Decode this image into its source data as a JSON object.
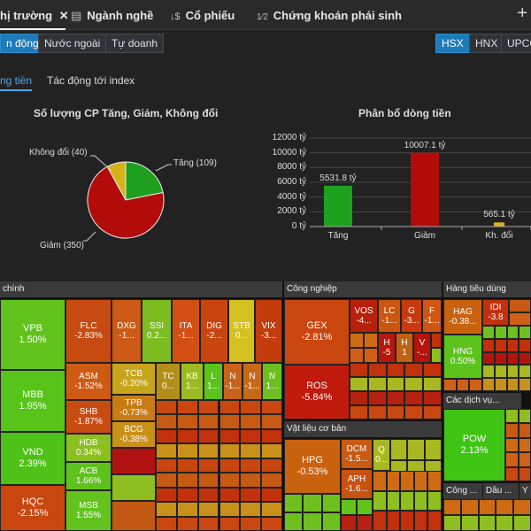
{
  "tabs": [
    {
      "label": "hị trường",
      "icon": "",
      "close": "✕"
    },
    {
      "label": "Ngành nghề",
      "icon": "▤"
    },
    {
      "label": "Cổ phiếu",
      "icon": "↓$"
    },
    {
      "label": "Chứng khoán phái sinh",
      "icon": "1⁄2"
    }
  ],
  "plus": "+",
  "filters": [
    "n động",
    "Nước ngoài",
    "Tự doanh"
  ],
  "exchanges": [
    "HSX",
    "HNX",
    "UPCO"
  ],
  "subtabs": [
    "ng tiền",
    "Tác động tới index"
  ],
  "pie": {
    "title": "Số lượng CP Tăng, Giảm, Không đổi",
    "labels": {
      "flat": "Không đổi (40)",
      "up": "Tăng (109)",
      "down": "Giảm (350)"
    }
  },
  "bar": {
    "title": "Phân bổ dòng tiền",
    "ticks": [
      "12000 tỷ",
      "10000 tỷ",
      "8000 tỷ",
      "6000 tỷ",
      "4000 tỷ",
      "2000 tỷ",
      "0 tỷ"
    ],
    "value_labels": [
      "5531.8 tỷ",
      "10007.1 tỷ",
      "565.1 tỷ"
    ]
  },
  "chart_data": [
    {
      "type": "pie",
      "title": "Số lượng CP Tăng, Giảm, Không đổi",
      "categories": [
        "Tăng",
        "Giảm",
        "Không đổi"
      ],
      "values": [
        109,
        350,
        40
      ],
      "colors": [
        "#1ea01e",
        "#b30a0a",
        "#d6b21a"
      ]
    },
    {
      "type": "bar",
      "title": "Phân bổ dòng tiền",
      "categories": [
        "Tăng",
        "Giảm",
        "Kh. đổi"
      ],
      "values": [
        5531.8,
        10007.1,
        565.1
      ],
      "unit": "tỷ",
      "ylim": [
        0,
        12000
      ],
      "colors": [
        "#1ea01e",
        "#b30a0a",
        "#d6b21a"
      ],
      "grid": true
    }
  ],
  "sectors": {
    "finance": "chính",
    "industry": "Công nghiệp",
    "consumer": "Hàng tiêu dùng",
    "materials": "Vật liệu cơ bản",
    "services": "Các dịch vụ...",
    "s1": "Công ...",
    "s2": "Dầu ...",
    "s3": "Y ..."
  },
  "tiles": {
    "vpb": {
      "t": "VPB",
      "v": "1.50%"
    },
    "mbb": {
      "t": "MBB",
      "v": "1.95%"
    },
    "vnd": {
      "t": "VND",
      "v": "2.39%"
    },
    "hqc": {
      "t": "HQC",
      "v": "-2.15%"
    },
    "flc": {
      "t": "FLC",
      "v": "-2.83%"
    },
    "dxg": {
      "t": "DXG",
      "v": "-1..."
    },
    "ssi": {
      "t": "SSI",
      "v": "0.2..."
    },
    "ita": {
      "t": "ITA",
      "v": "-1..."
    },
    "dig": {
      "t": "DIG",
      "v": "-2..."
    },
    "stb": {
      "t": "STB",
      "v": "0..."
    },
    "vix": {
      "t": "VIX",
      "v": "-3..."
    },
    "asm": {
      "t": "ASM",
      "v": "-1.52%"
    },
    "shb": {
      "t": "SHB",
      "v": "-1.87%"
    },
    "hdb": {
      "t": "HDB",
      "v": "0.34%"
    },
    "acb": {
      "t": "ACB",
      "v": "1.66%"
    },
    "msb": {
      "t": "MSB",
      "v": "1.55%"
    },
    "tcb": {
      "t": "TCB",
      "v": "-0.20%"
    },
    "tpb": {
      "t": "TPB",
      "v": "-0.73%"
    },
    "bcg": {
      "t": "BCG",
      "v": "-0.38%"
    },
    "tc": {
      "t": "TC",
      "v": "0..."
    },
    "kb": {
      "t": "KB",
      "v": "1..."
    },
    "l1": {
      "t": "L",
      "v": "1..."
    },
    "n1": {
      "t": "N",
      "v": "-1..."
    },
    "n2": {
      "t": "N",
      "v": "-1..."
    },
    "n3": {
      "t": "N",
      "v": "1..."
    },
    "gex": {
      "t": "GEX",
      "v": "-2.81%"
    },
    "ros": {
      "t": "ROS",
      "v": "-5.84%"
    },
    "vos": {
      "t": "VOS",
      "v": "-4..."
    },
    "lc": {
      "t": "LC",
      "v": "-1..."
    },
    "g": {
      "t": "G",
      "v": "-3..."
    },
    "f": {
      "t": "F",
      "v": "-1..."
    },
    "h1": {
      "t": "H",
      "v": "-5"
    },
    "h2": {
      "t": "H",
      "v": "1"
    },
    "v": {
      "t": "V",
      "v": "-..."
    },
    "hpg": {
      "t": "HPG",
      "v": "-0.53%"
    },
    "dcm": {
      "t": "DCM",
      "v": "-1.5..."
    },
    "aph": {
      "t": "APH",
      "v": "-1.6..."
    },
    "q": {
      "t": "Q",
      "v": "0..."
    },
    "hag": {
      "t": "HAG",
      "v": "-0.38..."
    },
    "idi": {
      "t": "IDI",
      "v": "-3.8"
    },
    "hng": {
      "t": "HNG",
      "v": "0.50%"
    },
    "pow": {
      "t": "POW",
      "v": "2.13%"
    }
  }
}
